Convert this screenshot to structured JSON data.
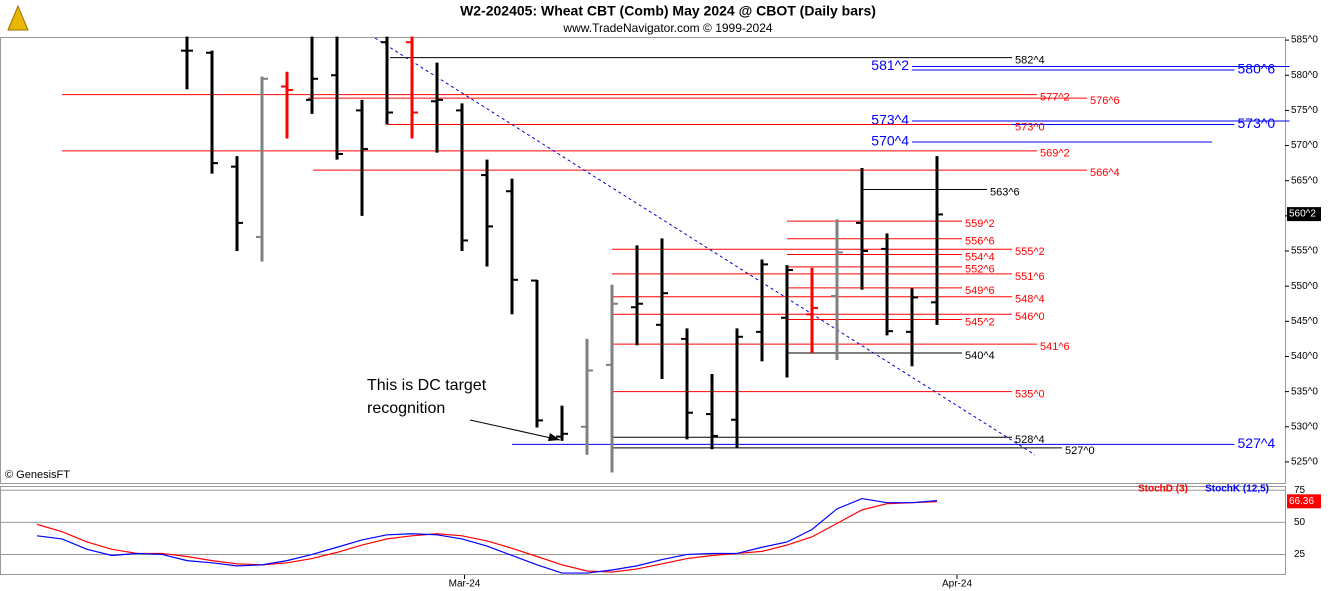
{
  "chart_data": [
    {
      "type": "ohlc",
      "title": "W2-202405:  Wheat CBT (Comb) May 2024 @ CBOT  (Daily bars)",
      "subtitle": "www.TradeNavigator.com © 1999-2024",
      "source": "© GenesisFT",
      "annotation": [
        "This is DC target",
        "recognition"
      ],
      "x": [
        0,
        1,
        2,
        3,
        4,
        5,
        6,
        7,
        8,
        9,
        10,
        11,
        12,
        13,
        14,
        15,
        16,
        17,
        18,
        19,
        20,
        21,
        22,
        23,
        24,
        25,
        26,
        27,
        28,
        29,
        30
      ],
      "open": [
        583.5,
        583.2,
        567,
        557,
        578.4,
        576.5,
        580,
        575,
        584.7,
        584.7,
        576.3,
        575,
        565.8,
        563.5,
        550.8,
        528.6,
        530,
        538.8,
        547,
        544.5,
        542.5,
        531.8,
        531,
        543.5,
        545.5,
        546,
        548.6,
        559,
        555.3,
        543.5,
        547.7
      ],
      "high": [
        585.5,
        583.5,
        568.5,
        579.8,
        580.5,
        585.5,
        585.5,
        576.5,
        585.5,
        585.5,
        581.8,
        576,
        568,
        565.3,
        550.9,
        533,
        542.5,
        550.2,
        555.8,
        556.8,
        544,
        537.5,
        544,
        553.8,
        553,
        552.6,
        559.5,
        566.8,
        557.5,
        549.7,
        568.5
      ],
      "low": [
        578,
        566,
        555,
        553.5,
        571,
        574.5,
        568,
        560,
        573,
        571,
        569,
        555,
        552.8,
        546,
        529.9,
        528,
        526,
        523.5,
        541.6,
        536.8,
        528.2,
        526.8,
        527,
        539.3,
        537,
        540.5,
        539.5,
        549.5,
        543,
        538.6,
        544.5
      ],
      "close": [
        583.5,
        567.5,
        559,
        579.5,
        577.9,
        579.5,
        568.8,
        569.5,
        574.7,
        574.7,
        576.5,
        556.5,
        558.5,
        550.9,
        530.9,
        529,
        538,
        547.5,
        547.5,
        549,
        532,
        528.7,
        542.8,
        553.1,
        552.3,
        546.9,
        554.8,
        555,
        543.6,
        548.4,
        560.2
      ],
      "colors": [
        "#000000",
        "#000000",
        "#000000",
        "#808080",
        "#ff0000",
        "#000000",
        "#000000",
        "#000000",
        "#000000",
        "#ff0000",
        "#000000",
        "#000000",
        "#000000",
        "#000000",
        "#000000",
        "#000000",
        "#808080",
        "#808080",
        "#000000",
        "#000000",
        "#000000",
        "#000000",
        "#000000",
        "#000000",
        "#000000",
        "#ff0000",
        "#808080",
        "#000000",
        "#000000",
        "#000000",
        "#000000"
      ],
      "xlim": [
        -7.48,
        43.92
      ],
      "ylim": [
        522,
        585.3
      ],
      "yticks": [
        {
          "value": 525,
          "label": "525^0"
        },
        {
          "value": 530,
          "label": "530^0"
        },
        {
          "value": 535,
          "label": "535^0"
        },
        {
          "value": 540,
          "label": "540^0"
        },
        {
          "value": 545,
          "label": "545^0"
        },
        {
          "value": 550,
          "label": "550^0"
        },
        {
          "value": 555,
          "label": "555^0"
        },
        {
          "value": 560,
          "label": "560^0"
        },
        {
          "value": 565,
          "label": "565^0"
        },
        {
          "value": 570,
          "label": "570^0"
        },
        {
          "value": 575,
          "label": "575^0"
        },
        {
          "value": 580,
          "label": "580^0"
        },
        {
          "value": 585,
          "label": "585^0"
        }
      ],
      "last": {
        "value": 560.25,
        "label": "560^2"
      },
      "trendline": {
        "x": [
          7.52,
          33.92
        ],
        "y": [
          585.3,
          526.0
        ],
        "color": "#0000cc"
      },
      "levels": [
        {
          "value": 582.5,
          "label": "582^4",
          "color": "#000000",
          "start": 8.12,
          "end": 33,
          "label_side": "end"
        },
        {
          "value": 581.25,
          "label": "581^2",
          "color": "#0000ff",
          "start": 29,
          "end": 44.1,
          "label_side": "start"
        },
        {
          "value": 580.75,
          "label": "580^6",
          "color": "#0000ff",
          "start": 29,
          "end": 41.9,
          "label_side": "end"
        },
        {
          "value": 577.25,
          "label": "577^2",
          "color": "#ff0000",
          "start": -5,
          "end": 34,
          "label_side": "end"
        },
        {
          "value": 576.75,
          "label": "576^6",
          "color": "#ff0000",
          "start": 4.84,
          "end": 36,
          "label_side": "end"
        },
        {
          "value": 573.5,
          "label": "573^4",
          "color": "#0000ff",
          "start": 29,
          "end": 44.1,
          "label_side": "start"
        },
        {
          "value": 573,
          "label": "573^0",
          "color": "#0000ff",
          "start": 29,
          "end": 41.9,
          "label_side": "end"
        },
        {
          "value": 573,
          "label": "573^0",
          "color": "#ff0000",
          "start": 8.04,
          "end": 33,
          "label_side": "end"
        },
        {
          "value": 570.5,
          "label": "570^4",
          "color": "#0000ff",
          "start": 29,
          "end": 41,
          "label_side": "start"
        },
        {
          "value": 569.25,
          "label": "569^2",
          "color": "#ff0000",
          "start": -5,
          "end": 34,
          "label_side": "end"
        },
        {
          "value": 566.5,
          "label": "566^4",
          "color": "#ff0000",
          "start": 5.04,
          "end": 36,
          "label_side": "end"
        },
        {
          "value": 563.75,
          "label": "563^6",
          "color": "#000000",
          "start": 27,
          "end": 32,
          "label_side": "end"
        },
        {
          "value": 559.25,
          "label": "559^2",
          "color": "#ff0000",
          "start": 24,
          "end": 31,
          "label_side": "end"
        },
        {
          "value": 556.75,
          "label": "556^6",
          "color": "#ff0000",
          "start": 24,
          "end": 31,
          "label_side": "end"
        },
        {
          "value": 555.25,
          "label": "555^2",
          "color": "#ff0000",
          "start": 17,
          "end": 33,
          "label_side": "end"
        },
        {
          "value": 554.5,
          "label": "554^4",
          "color": "#ff0000",
          "start": 24,
          "end": 31,
          "label_side": "end"
        },
        {
          "value": 552.75,
          "label": "552^6",
          "color": "#ff0000",
          "start": 24,
          "end": 31,
          "label_side": "end"
        },
        {
          "value": 551.75,
          "label": "551^6",
          "color": "#ff0000",
          "start": 17,
          "end": 33,
          "label_side": "end"
        },
        {
          "value": 549.75,
          "label": "549^6",
          "color": "#ff0000",
          "start": 24,
          "end": 31,
          "label_side": "end"
        },
        {
          "value": 548.5,
          "label": "548^4",
          "color": "#ff0000",
          "start": 17,
          "end": 33,
          "label_side": "end"
        },
        {
          "value": 546,
          "label": "546^0",
          "color": "#ff0000",
          "start": 17,
          "end": 33,
          "label_side": "end"
        },
        {
          "value": 545.25,
          "label": "545^2",
          "color": "#ff0000",
          "start": 24,
          "end": 31,
          "label_side": "end"
        },
        {
          "value": 541.75,
          "label": "541^6",
          "color": "#ff0000",
          "start": 17,
          "end": 34,
          "label_side": "end"
        },
        {
          "value": 540.5,
          "label": "540^4",
          "color": "#000000",
          "start": 24,
          "end": 31,
          "label_side": "end"
        },
        {
          "value": 535,
          "label": "535^0",
          "color": "#ff0000",
          "start": 17,
          "end": 33,
          "label_side": "end"
        },
        {
          "value": 528.5,
          "label": "528^4",
          "color": "#000000",
          "start": 17,
          "end": 33,
          "label_side": "end"
        },
        {
          "value": 527.5,
          "label": "527^4",
          "color": "#0000ff",
          "start": 13,
          "end": 41.9,
          "label_side": "end"
        },
        {
          "value": 527,
          "label": "527^0",
          "color": "#000000",
          "start": 17,
          "end": 35,
          "label_side": "end"
        }
      ]
    },
    {
      "type": "line",
      "x": [
        -6,
        -5,
        -4,
        -3,
        -2,
        -1,
        0,
        1,
        2,
        3,
        4,
        5,
        6,
        7,
        8,
        9,
        10,
        11,
        12,
        13,
        14,
        15,
        16,
        17,
        18,
        19,
        20,
        21,
        22,
        23,
        24,
        25,
        26,
        27,
        28,
        29,
        30
      ],
      "series": [
        {
          "name": "StochD (3)",
          "color": "#ff0000",
          "values": [
            48.4,
            42.7,
            34.7,
            29,
            25.8,
            25.8,
            23.4,
            20.2,
            17.7,
            16.9,
            18.5,
            21.8,
            26.6,
            32.3,
            37.1,
            39.5,
            41.1,
            39.5,
            35.5,
            29.8,
            23.4,
            16.9,
            12.1,
            11.3,
            13.7,
            17.7,
            21.8,
            24.2,
            25.8,
            27.4,
            32.3,
            38.7,
            49.2,
            59.7,
            64.5,
            65.3,
            66.1
          ]
        },
        {
          "name": "StochK (12,5)",
          "color": "#0000ff",
          "values": [
            39.5,
            37.1,
            29,
            24.2,
            25.8,
            25,
            20.2,
            18.5,
            16.1,
            16.9,
            20.2,
            25,
            30.6,
            36.3,
            40.3,
            41.1,
            40.3,
            37.1,
            31.5,
            24.2,
            16.9,
            10.5,
            10.5,
            12.9,
            16.1,
            21,
            25,
            25.8,
            25.8,
            30.6,
            34.7,
            44.4,
            60.5,
            68.5,
            65.3,
            65.3,
            66.9
          ]
        }
      ],
      "last": 66.36,
      "xlim": [
        -7.48,
        43.92
      ],
      "ylim": [
        9,
        77.5
      ],
      "yticks": [
        25,
        50,
        75
      ],
      "xticks": [
        {
          "value": 11.1,
          "label": "Mar-24"
        },
        {
          "value": 30.8,
          "label": "Apr-24"
        }
      ]
    }
  ]
}
